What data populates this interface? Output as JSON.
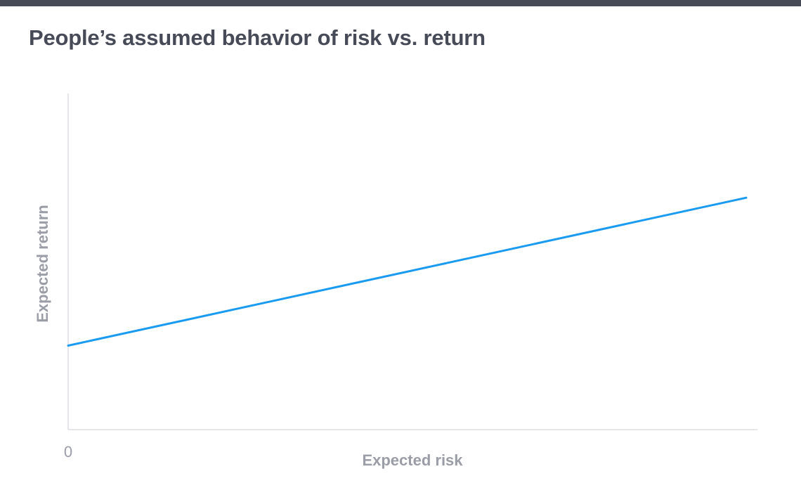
{
  "chart_data": {
    "type": "line",
    "title": "People’s assumed behavior of risk vs. return",
    "xlabel": "Expected risk",
    "ylabel": "Expected return",
    "x_tick_labels": [
      "0"
    ],
    "xlim": [
      0,
      100
    ],
    "ylim": [
      0,
      100
    ],
    "grid": false,
    "legend": "none",
    "series": [
      {
        "x": [
          0,
          100
        ],
        "y": [
          25,
          69
        ],
        "color": "#1a9bf0"
      }
    ]
  }
}
